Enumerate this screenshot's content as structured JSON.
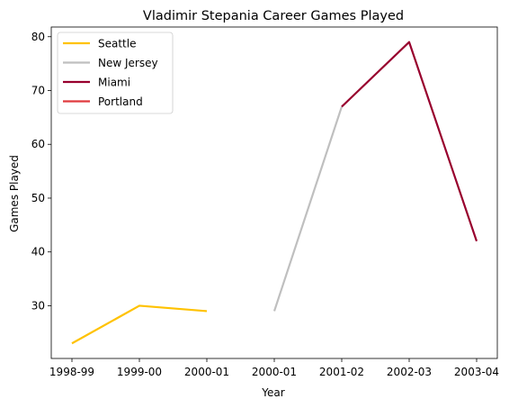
{
  "chart_data": {
    "type": "line",
    "title": "Vladimir Stepania Career Games Played",
    "xlabel": "Year",
    "ylabel": "Games Played",
    "x_tick_labels": [
      "1998-99",
      "1999-00",
      "2000-01",
      "2000-01",
      "2001-02",
      "2002-03",
      "2003-04"
    ],
    "ylim": [
      20.2,
      81.8
    ],
    "y_ticks": [
      30,
      40,
      50,
      60,
      70,
      80
    ],
    "grid": false,
    "legend_position": "top-left",
    "series": [
      {
        "name": "Seattle",
        "color": "#FFC200",
        "points": [
          [
            "1998-99",
            23
          ],
          [
            "1999-00",
            30
          ],
          [
            "2000-01",
            29
          ]
        ]
      },
      {
        "name": "New Jersey",
        "color": "#BFBFBF",
        "points": [
          [
            "2000-01",
            29
          ],
          [
            "2001-02",
            67
          ]
        ]
      },
      {
        "name": "Miami",
        "color": "#98002E",
        "points": [
          [
            "2001-02",
            67
          ],
          [
            "2002-03",
            79
          ],
          [
            "2003-04",
            42
          ]
        ]
      },
      {
        "name": "Portland",
        "color": "#E03A3E",
        "points": []
      }
    ]
  }
}
